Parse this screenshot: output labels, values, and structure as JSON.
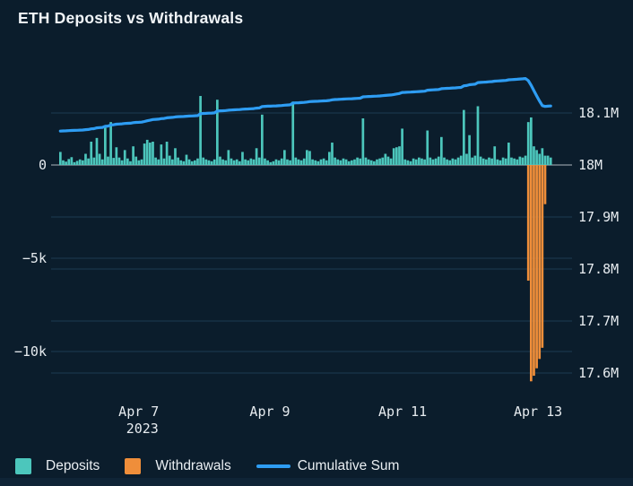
{
  "title": "ETH Deposits vs Withdrawals",
  "colors": {
    "background": "#0b1d2c",
    "deposits": "#4cc6bc",
    "withdrawals": "#ef8e3a",
    "cumulative_line": "#2e9df3",
    "zero_line": "#5d6a75",
    "gridline": "#1c3a52",
    "tick_label": "#e6ebef",
    "title_text": "#f1f5f8"
  },
  "legend": {
    "items": [
      {
        "label": "Deposits",
        "type": "square",
        "color": "#4cc6bc"
      },
      {
        "label": "Withdrawals",
        "type": "square",
        "color": "#ef8e3a"
      },
      {
        "label": "Cumulative Sum",
        "type": "line",
        "color": "#2e9df3"
      }
    ]
  },
  "chart_data": {
    "type": "bar",
    "subtype": "bars-with-cumulative-line",
    "title": "ETH Deposits vs Withdrawals",
    "x_unit": "hourly buckets, Apr 5 - Apr 13 2023",
    "grid": true,
    "legend_position": "bottom-left",
    "x_ticks": [
      {
        "i": 28.4,
        "label": "Apr 7",
        "sublabel": "2023"
      },
      {
        "i": 75.2,
        "label": "Apr 9",
        "sublabel": ""
      },
      {
        "i": 122.6,
        "label": "Apr 11",
        "sublabel": ""
      },
      {
        "i": 170.9,
        "label": "Apr 13",
        "sublabel": ""
      }
    ],
    "left_axis": {
      "title": "bar scale (ETH)",
      "ticks": [
        {
          "v": 0,
          "label": "0"
        },
        {
          "v": -5000,
          "label": "−5k"
        },
        {
          "v": -10000,
          "label": "−10k"
        }
      ]
    },
    "right_axis": {
      "title": "cumulative scale (ETH)",
      "ticks": [
        {
          "v": 18100000,
          "label": "18.1M"
        },
        {
          "v": 18000000,
          "label": "18M"
        },
        {
          "v": 17900000,
          "label": "17.9M"
        },
        {
          "v": 17800000,
          "label": "17.8M"
        },
        {
          "v": 17700000,
          "label": "17.7M"
        },
        {
          "v": 17600000,
          "label": "17.6M"
        }
      ]
    },
    "series": [
      {
        "name": "Deposits",
        "type": "bar",
        "color": "#4cc6bc",
        "values": [
          700,
          250,
          180,
          320,
          420,
          150,
          220,
          300,
          250,
          600,
          350,
          1250,
          400,
          1450,
          600,
          300,
          2100,
          450,
          2300,
          380,
          950,
          400,
          250,
          800,
          350,
          200,
          1000,
          450,
          250,
          300,
          1150,
          1350,
          1200,
          1250,
          400,
          300,
          1100,
          350,
          1250,
          500,
          300,
          900,
          400,
          250,
          200,
          550,
          300,
          200,
          250,
          350,
          3700,
          400,
          300,
          250,
          200,
          300,
          3500,
          450,
          300,
          250,
          800,
          350,
          250,
          300,
          200,
          700,
          300,
          250,
          350,
          300,
          900,
          400,
          2700,
          350,
          250,
          150,
          200,
          300,
          250,
          350,
          800,
          300,
          250,
          3400,
          400,
          300,
          250,
          350,
          800,
          750,
          300,
          250,
          200,
          300,
          350,
          250,
          700,
          1200,
          400,
          300,
          250,
          350,
          300,
          200,
          250,
          300,
          400,
          350,
          2500,
          400,
          300,
          250,
          200,
          300,
          350,
          400,
          600,
          450,
          350,
          900,
          950,
          1000,
          1950,
          300,
          250,
          200,
          350,
          300,
          400,
          350,
          300,
          1850,
          400,
          300,
          350,
          450,
          1500,
          400,
          300,
          250,
          350,
          300,
          400,
          500,
          2950,
          600,
          1600,
          400,
          500,
          3150,
          450,
          350,
          300,
          400,
          350,
          1000,
          300,
          250,
          400,
          350,
          1200,
          400,
          350,
          300,
          450,
          400,
          500,
          2300,
          2550,
          1000,
          800,
          600,
          900,
          500,
          500,
          400
        ]
      },
      {
        "name": "Withdrawals",
        "type": "bar",
        "color": "#ef8e3a",
        "start_index": 167,
        "values": [
          -6200,
          -11600,
          -11300,
          -10900,
          -10400,
          -9800,
          -2100
        ]
      },
      {
        "name": "Cumulative Sum",
        "type": "line",
        "color": "#2e9df3",
        "start_value": 18064500,
        "derivation": "start_value + running sum of (Deposits + Withdrawals)"
      }
    ]
  }
}
